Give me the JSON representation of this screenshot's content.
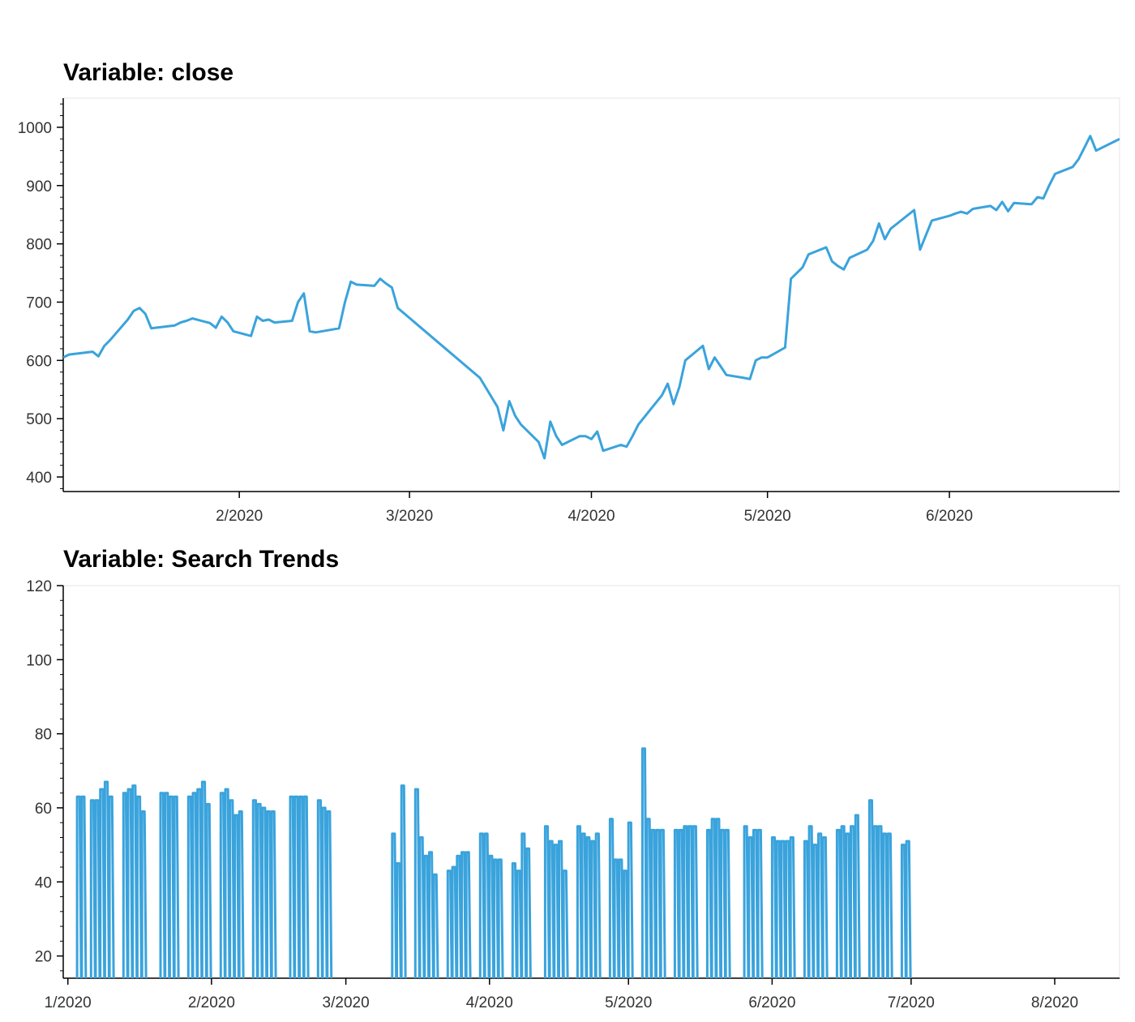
{
  "chart_data": [
    {
      "type": "line",
      "title": "Variable: close",
      "xlabel": "",
      "ylabel": "",
      "color": "#3aa3dc",
      "x_tick_labels": [
        "2/2020",
        "3/2020",
        "4/2020",
        "5/2020",
        "6/2020"
      ],
      "y_tick_labels": [
        "400",
        "500",
        "600",
        "700",
        "800",
        "900",
        "1000"
      ],
      "y_ticks": [
        400,
        500,
        600,
        700,
        800,
        900,
        1000
      ],
      "xlim": [
        "2020-01-02",
        "2020-06-30"
      ],
      "ylim": [
        375,
        1050
      ],
      "grid": false,
      "x": [
        "2020-01-02",
        "2020-01-03",
        "2020-01-07",
        "2020-01-08",
        "2020-01-09",
        "2020-01-10",
        "2020-01-13",
        "2020-01-14",
        "2020-01-15",
        "2020-01-16",
        "2020-01-17",
        "2020-01-21",
        "2020-01-22",
        "2020-01-23",
        "2020-01-24",
        "2020-01-27",
        "2020-01-28",
        "2020-01-29",
        "2020-01-30",
        "2020-01-31",
        "2020-02-03",
        "2020-02-04",
        "2020-02-05",
        "2020-02-06",
        "2020-02-07",
        "2020-02-10",
        "2020-02-11",
        "2020-02-12",
        "2020-02-13",
        "2020-02-14",
        "2020-02-18",
        "2020-02-19",
        "2020-02-20",
        "2020-02-21",
        "2020-02-24",
        "2020-02-25",
        "2020-02-26",
        "2020-02-27",
        "2020-02-28",
        "2020-03-13",
        "2020-03-16",
        "2020-03-17",
        "2020-03-18",
        "2020-03-19",
        "2020-03-20",
        "2020-03-23",
        "2020-03-24",
        "2020-03-25",
        "2020-03-26",
        "2020-03-27",
        "2020-03-30",
        "2020-03-31",
        "2020-04-01",
        "2020-04-02",
        "2020-04-03",
        "2020-04-06",
        "2020-04-07",
        "2020-04-08",
        "2020-04-09",
        "2020-04-13",
        "2020-04-14",
        "2020-04-15",
        "2020-04-16",
        "2020-04-17",
        "2020-04-20",
        "2020-04-21",
        "2020-04-22",
        "2020-04-23",
        "2020-04-24",
        "2020-04-27",
        "2020-04-28",
        "2020-04-29",
        "2020-04-30",
        "2020-05-01",
        "2020-05-04",
        "2020-05-05",
        "2020-05-06",
        "2020-05-07",
        "2020-05-08",
        "2020-05-11",
        "2020-05-12",
        "2020-05-13",
        "2020-05-14",
        "2020-05-15",
        "2020-05-18",
        "2020-05-19",
        "2020-05-20",
        "2020-05-21",
        "2020-05-22",
        "2020-05-26",
        "2020-05-27",
        "2020-05-28",
        "2020-05-29",
        "2020-06-01",
        "2020-06-02",
        "2020-06-03",
        "2020-06-04",
        "2020-06-05",
        "2020-06-08",
        "2020-06-09",
        "2020-06-10",
        "2020-06-11",
        "2020-06-12",
        "2020-06-15",
        "2020-06-16",
        "2020-06-17",
        "2020-06-18",
        "2020-06-19",
        "2020-06-22",
        "2020-06-23",
        "2020-06-24",
        "2020-06-25",
        "2020-06-26",
        "2020-06-29",
        "2020-06-30"
      ],
      "y": [
        605,
        610,
        615,
        607,
        625,
        635,
        670,
        685,
        690,
        680,
        655,
        660,
        665,
        668,
        672,
        664,
        656,
        675,
        665,
        650,
        642,
        675,
        668,
        670,
        665,
        668,
        700,
        715,
        650,
        648,
        655,
        700,
        735,
        730,
        728,
        740,
        732,
        725,
        690,
        570,
        520,
        480,
        530,
        505,
        490,
        460,
        432,
        495,
        470,
        455,
        470,
        470,
        465,
        478,
        445,
        455,
        452,
        470,
        490,
        540,
        560,
        525,
        555,
        600,
        625,
        585,
        605,
        590,
        575,
        570,
        568,
        600,
        605,
        605,
        622,
        740,
        750,
        760,
        782,
        794,
        770,
        762,
        756,
        776,
        790,
        805,
        835,
        808,
        826,
        858,
        790,
        815,
        840,
        848,
        852,
        855,
        852,
        860,
        865,
        858,
        872,
        856,
        870,
        868,
        880,
        878,
        900,
        920,
        932,
        945,
        965,
        985,
        960,
        975,
        980
      ]
    },
    {
      "type": "line",
      "title": "Variable: Search Trends",
      "xlabel": "",
      "ylabel": "",
      "color": "#3aa3dc",
      "x_tick_labels": [
        "1/2020",
        "2/2020",
        "3/2020",
        "4/2020",
        "5/2020",
        "6/2020",
        "7/2020",
        "8/2020"
      ],
      "y_tick_labels": [
        "20",
        "40",
        "60",
        "80",
        "100",
        "120"
      ],
      "y_ticks": [
        20,
        40,
        60,
        80,
        100,
        120
      ],
      "xlim": [
        "2019-12-31",
        "2020-08-15"
      ],
      "ylim": [
        14,
        120
      ],
      "grid": false,
      "x": [
        "2020-01-03",
        "2020-01-04",
        "2020-01-06",
        "2020-01-07",
        "2020-01-08",
        "2020-01-09",
        "2020-01-10",
        "2020-01-13",
        "2020-01-14",
        "2020-01-15",
        "2020-01-16",
        "2020-01-17",
        "2020-01-21",
        "2020-01-22",
        "2020-01-23",
        "2020-01-24",
        "2020-01-27",
        "2020-01-28",
        "2020-01-29",
        "2020-01-30",
        "2020-01-31",
        "2020-02-03",
        "2020-02-04",
        "2020-02-05",
        "2020-02-06",
        "2020-02-07",
        "2020-02-10",
        "2020-02-11",
        "2020-02-12",
        "2020-02-13",
        "2020-02-14",
        "2020-02-18",
        "2020-02-19",
        "2020-02-20",
        "2020-02-21",
        "2020-02-24",
        "2020-02-25",
        "2020-02-26",
        "2020-03-11",
        "2020-03-12",
        "2020-03-13",
        "2020-03-16",
        "2020-03-17",
        "2020-03-18",
        "2020-03-19",
        "2020-03-20",
        "2020-03-23",
        "2020-03-24",
        "2020-03-25",
        "2020-03-26",
        "2020-03-27",
        "2020-03-30",
        "2020-03-31",
        "2020-04-01",
        "2020-04-02",
        "2020-04-03",
        "2020-04-06",
        "2020-04-07",
        "2020-04-08",
        "2020-04-09",
        "2020-04-13",
        "2020-04-14",
        "2020-04-15",
        "2020-04-16",
        "2020-04-17",
        "2020-04-20",
        "2020-04-21",
        "2020-04-22",
        "2020-04-23",
        "2020-04-24",
        "2020-04-27",
        "2020-04-28",
        "2020-04-29",
        "2020-04-30",
        "2020-05-01",
        "2020-05-04",
        "2020-05-05",
        "2020-05-06",
        "2020-05-07",
        "2020-05-08",
        "2020-05-11",
        "2020-05-12",
        "2020-05-13",
        "2020-05-14",
        "2020-05-15",
        "2020-05-18",
        "2020-05-19",
        "2020-05-20",
        "2020-05-21",
        "2020-05-22",
        "2020-05-26",
        "2020-05-27",
        "2020-05-28",
        "2020-05-29",
        "2020-06-01",
        "2020-06-02",
        "2020-06-03",
        "2020-06-04",
        "2020-06-05",
        "2020-06-08",
        "2020-06-09",
        "2020-06-10",
        "2020-06-11",
        "2020-06-12",
        "2020-06-15",
        "2020-06-16",
        "2020-06-17",
        "2020-06-18",
        "2020-06-19",
        "2020-06-22",
        "2020-06-23",
        "2020-06-24",
        "2020-06-25",
        "2020-06-26",
        "2020-06-29",
        "2020-06-30"
      ],
      "y": [
        63,
        63,
        62,
        62,
        65,
        67,
        63,
        64,
        65,
        66,
        63,
        59,
        64,
        64,
        63,
        63,
        63,
        64,
        65,
        67,
        61,
        64,
        65,
        62,
        58,
        59,
        62,
        61,
        60,
        59,
        59,
        63,
        63,
        63,
        63,
        62,
        60,
        59,
        53,
        45,
        66,
        65,
        52,
        47,
        48,
        42,
        43,
        44,
        47,
        48,
        48,
        53,
        53,
        47,
        46,
        46,
        45,
        43,
        53,
        49,
        55,
        51,
        50,
        51,
        43,
        55,
        53,
        52,
        51,
        53,
        57,
        46,
        46,
        43,
        56,
        76,
        57,
        54,
        54,
        54,
        54,
        54,
        55,
        55,
        55,
        54,
        57,
        57,
        54,
        54,
        55,
        52,
        54,
        54,
        52,
        51,
        51,
        51,
        52,
        51,
        55,
        50,
        53,
        52,
        54,
        55,
        53,
        55,
        58,
        62,
        55,
        55,
        53,
        53,
        50,
        51
      ]
    }
  ]
}
